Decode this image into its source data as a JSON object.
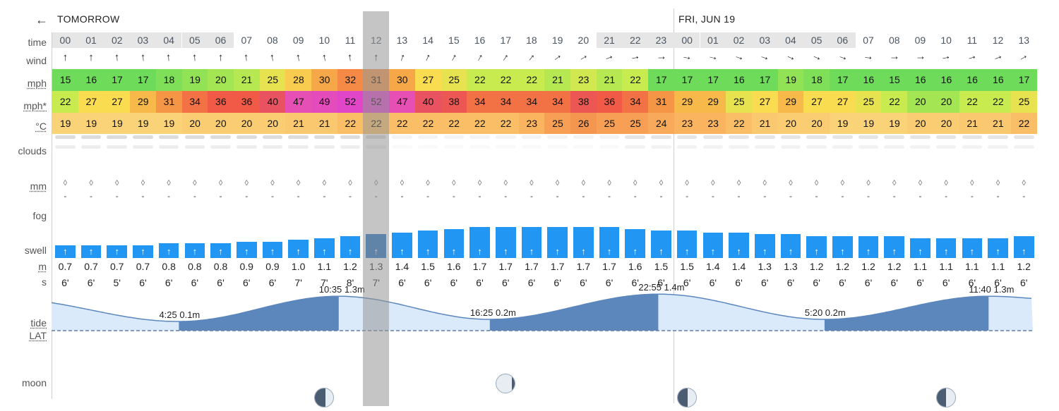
{
  "header": {
    "back_label": "←",
    "day1": "TOMORROW",
    "day2": "FRI, JUN 19"
  },
  "labels": {
    "time": "time",
    "wind": "wind",
    "mph": "mph",
    "mph_gust": "mph*",
    "temp": "°C",
    "clouds": "clouds",
    "mm": "mm",
    "fog": "fog",
    "swell": "swell",
    "m": "m",
    "s": "s",
    "tide": "tide",
    "lat": "LAT",
    "moon": "moon"
  },
  "selected_index": 12,
  "hours": [
    "00",
    "01",
    "02",
    "03",
    "04",
    "05",
    "06",
    "07",
    "08",
    "09",
    "10",
    "11",
    "12",
    "13",
    "14",
    "15",
    "16",
    "17",
    "18",
    "19",
    "20",
    "21",
    "22",
    "23",
    "00",
    "01",
    "02",
    "03",
    "04",
    "05",
    "06",
    "07",
    "08",
    "09",
    "10",
    "11",
    "12",
    "13"
  ],
  "night_hours": [
    0,
    1,
    2,
    3,
    4,
    5,
    6,
    21,
    22,
    23,
    24,
    25,
    26,
    27,
    28,
    29,
    30
  ],
  "wind_direction_deg": [
    0,
    0,
    -5,
    -5,
    -5,
    -5,
    0,
    -5,
    -10,
    -10,
    -10,
    -5,
    0,
    20,
    25,
    30,
    30,
    35,
    40,
    55,
    60,
    70,
    80,
    90,
    100,
    105,
    110,
    110,
    115,
    115,
    110,
    95,
    90,
    90,
    80,
    75,
    70,
    60
  ],
  "wind_mph": [
    15,
    16,
    17,
    17,
    18,
    19,
    20,
    21,
    25,
    28,
    30,
    32,
    31,
    30,
    27,
    25,
    22,
    22,
    22,
    21,
    23,
    21,
    22,
    17,
    17,
    17,
    16,
    17,
    19,
    18,
    17,
    16,
    15,
    16,
    16,
    16,
    16,
    17
  ],
  "gust_mph": [
    22,
    27,
    27,
    29,
    31,
    34,
    36,
    36,
    40,
    47,
    49,
    52,
    52,
    47,
    40,
    38,
    34,
    34,
    34,
    34,
    38,
    36,
    34,
    31,
    29,
    29,
    25,
    27,
    29,
    27,
    27,
    25,
    22,
    20,
    20,
    22,
    22,
    25
  ],
  "temp_c": [
    19,
    19,
    19,
    19,
    19,
    20,
    20,
    20,
    20,
    21,
    21,
    22,
    22,
    22,
    22,
    22,
    22,
    22,
    23,
    25,
    26,
    25,
    25,
    24,
    23,
    23,
    22,
    21,
    20,
    20,
    19,
    19,
    19,
    20,
    20,
    21,
    21,
    22
  ],
  "rain_mm": [
    "-",
    "-",
    "-",
    "-",
    "-",
    "-",
    "-",
    "-",
    "-",
    "-",
    "-",
    "-",
    "-",
    "-",
    "-",
    "-",
    "-",
    "-",
    "-",
    "-",
    "-",
    "-",
    "-",
    "-",
    "-",
    "-",
    "-",
    "-",
    "-",
    "-",
    "-",
    "-",
    "-",
    "-",
    "-",
    "-",
    "-",
    "-"
  ],
  "rain_icon": "raindrop-icon",
  "swell_m": [
    "0.7",
    "0.7",
    "0.7",
    "0.7",
    "0.8",
    "0.8",
    "0.8",
    "0.9",
    "0.9",
    "1.0",
    "1.1",
    "1.2",
    "1.3",
    "1.4",
    "1.5",
    "1.6",
    "1.7",
    "1.7",
    "1.7",
    "1.7",
    "1.7",
    "1.7",
    "1.6",
    "1.5",
    "1.5",
    "1.4",
    "1.4",
    "1.3",
    "1.3",
    "1.2",
    "1.2",
    "1.2",
    "1.2",
    "1.1",
    "1.1",
    "1.1",
    "1.1",
    "1.2"
  ],
  "swell_period": [
    "6'",
    "6'",
    "5'",
    "6'",
    "6'",
    "6'",
    "6'",
    "6'",
    "6'",
    "7'",
    "7'",
    "8'",
    "7'",
    "6'",
    "6'",
    "6'",
    "6'",
    "6'",
    "6'",
    "6'",
    "6'",
    "6'",
    "6'",
    "6'",
    "6'",
    "6'",
    "6'",
    "6'",
    "6'",
    "6'",
    "6'",
    "6'",
    "6'",
    "6'",
    "6'",
    "6'",
    "6'",
    "6'"
  ],
  "swell_arrow": "↑",
  "tide_events": [
    {
      "time": "4:25",
      "height": "0.1m",
      "type": "low"
    },
    {
      "time": "10:35",
      "height": "1.3m",
      "type": "high"
    },
    {
      "time": "16:25",
      "height": "0.2m",
      "type": "low"
    },
    {
      "time": "22:55",
      "height": "1.4m",
      "type": "high"
    },
    {
      "time": "5:20",
      "height": "0.2m",
      "type": "low"
    },
    {
      "time": "11:40",
      "height": "1.3m",
      "type": "high"
    }
  ],
  "moon_icon": "moon-phase-icon",
  "colors": {
    "swell_bar": "#2196f3",
    "swell_bar_selected": "#1e6fbf",
    "tide_fill": "#5b87bd",
    "tide_light": "#dbeafb",
    "selection": "#9e9e9e"
  }
}
